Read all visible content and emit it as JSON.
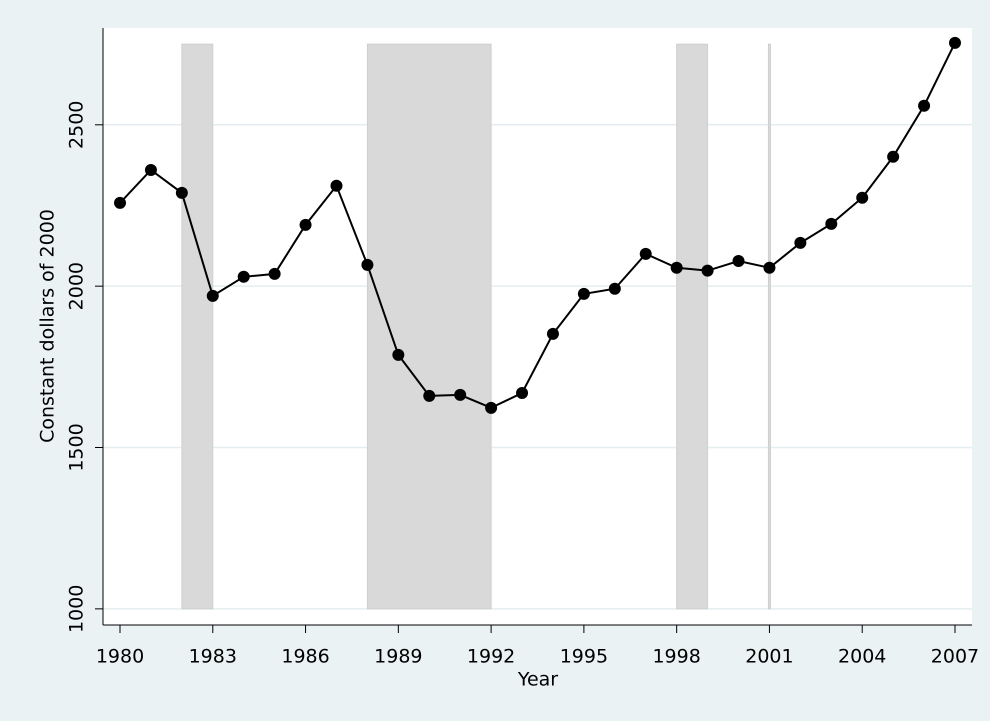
{
  "chart_data": {
    "type": "line",
    "x_label": "Year",
    "y_label": "Constant dollars of 2000",
    "x": [
      1980,
      1981,
      1982,
      1983,
      1984,
      1985,
      1986,
      1987,
      1988,
      1989,
      1990,
      1991,
      1992,
      1993,
      1994,
      1995,
      1996,
      1997,
      1998,
      1999,
      2000,
      2001,
      2002,
      2003,
      2004,
      2005,
      2006,
      2007
    ],
    "series": [
      {
        "color": "#000000",
        "values": [
          2258,
          2360,
          2289,
          1970,
          2029,
          2038,
          2190,
          2311,
          2066,
          1787,
          1660,
          1663,
          1623,
          1669,
          1852,
          1976,
          1992,
          2100,
          2057,
          2048,
          2078,
          2057,
          2134,
          2193,
          2274,
          2401,
          2559,
          2754
        ]
      }
    ],
    "bands": [
      [
        1982,
        1983
      ],
      [
        1988,
        1992
      ],
      [
        1998,
        1999
      ],
      [
        2001,
        2001
      ]
    ],
    "band_range": [
      1000,
      2750
    ],
    "band_color": "#d9d9d9",
    "xlim": [
      1979.45,
      2007.55
    ],
    "xticks": [
      1980,
      1983,
      1986,
      1989,
      1992,
      1995,
      1998,
      2001,
      2004,
      2007
    ],
    "ylim": [
      950,
      2800
    ],
    "yticks": [
      1000,
      1500,
      2000,
      2500
    ],
    "grid": true
  }
}
